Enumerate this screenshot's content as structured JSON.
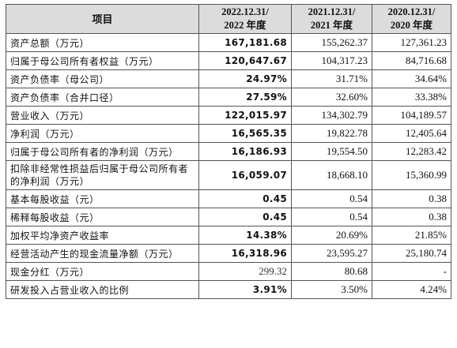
{
  "header": {
    "item": "项目",
    "col2_line1": "2022.12.31/",
    "col2_line2": "2022 年度",
    "col3_line1": "2021.12.31/",
    "col3_line2": "2021 年度",
    "col4_line1": "2020.12.31/",
    "col4_line2": "2020 年度"
  },
  "rows": [
    {
      "item": "资产总额（万元）",
      "v2022": "167,181.68",
      "v2021": "155,262.37",
      "v2020": "127,361.23"
    },
    {
      "item": "归属于母公司所有者权益（万元）",
      "v2022": "120,647.67",
      "v2021": "104,317.23",
      "v2020": "84,716.68"
    },
    {
      "item": "资产负债率（母公司）",
      "v2022": "24.97%",
      "v2021": "31.71%",
      "v2020": "34.64%"
    },
    {
      "item": "资产负债率（合并口径）",
      "v2022": "27.59%",
      "v2021": "32.60%",
      "v2020": "33.38%"
    },
    {
      "item": "营业收入（万元）",
      "v2022": "122,015.97",
      "v2021": "134,302.79",
      "v2020": "104,189.57"
    },
    {
      "item": "净利润（万元）",
      "v2022": "16,565.35",
      "v2021": "19,822.78",
      "v2020": "12,405.64"
    },
    {
      "item": "归属于母公司所有者的净利润（万元）",
      "v2022": "16,186.93",
      "v2021": "19,554.50",
      "v2020": "12,283.42"
    },
    {
      "item": "扣除非经常性损益后归属于母公司所有者的净利润（万元）",
      "v2022": "16,059.07",
      "v2021": "18,668.10",
      "v2020": "15,360.99"
    },
    {
      "item": "基本每股收益（元）",
      "v2022": "0.45",
      "v2021": "0.54",
      "v2020": "0.38"
    },
    {
      "item": "稀释每股收益（元）",
      "v2022": "0.45",
      "v2021": "0.54",
      "v2020": "0.38"
    },
    {
      "item": "加权平均净资产收益率",
      "v2022": "14.38%",
      "v2021": "20.69%",
      "v2020": "21.85%"
    },
    {
      "item": "经营活动产生的现金流量净额（万元）",
      "v2022": "16,318.96",
      "v2021": "23,595.27",
      "v2020": "25,180.74"
    },
    {
      "item": "现金分红（万元）",
      "v2022": "299.32",
      "v2021": "80.68",
      "v2020": "-"
    },
    {
      "item": "研发投入占营业收入的比例",
      "v2022": "3.91%",
      "v2021": "3.50%",
      "v2020": "4.24%"
    }
  ]
}
